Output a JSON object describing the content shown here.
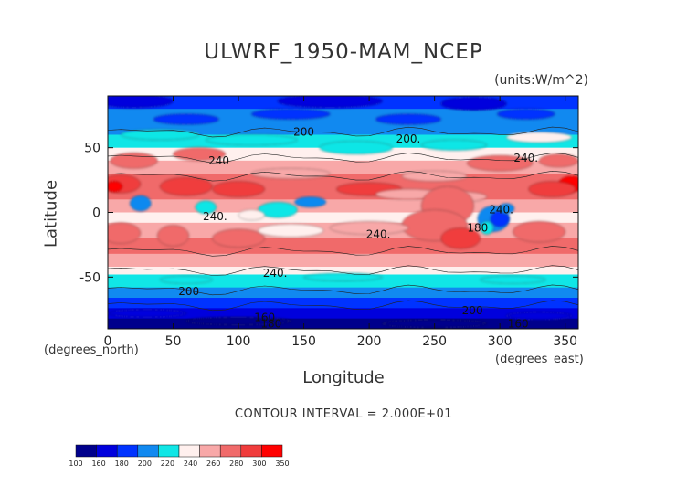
{
  "chart_data": {
    "type": "heatmap",
    "title": "ULWRF_1950-MAM_NCEP",
    "units": "(units:W/m^2)",
    "xlabel": "Longitude",
    "ylabel": "Latitude",
    "x_units": "(degrees_east)",
    "y_units": "(degrees_north)",
    "xlim": [
      0,
      360
    ],
    "ylim": [
      -90,
      90
    ],
    "x_ticks": [
      "0",
      "50",
      "100",
      "150",
      "200",
      "250",
      "300",
      "350"
    ],
    "x_tick_values": [
      0,
      50,
      100,
      150,
      200,
      250,
      300,
      350
    ],
    "y_ticks": [
      "50",
      "0",
      "-50"
    ],
    "y_tick_values": [
      50,
      0,
      -50
    ],
    "contour_interval": "CONTOUR INTERVAL = 2.000E+01",
    "contour_labels": [
      {
        "text": "200",
        "lon": 150,
        "lat": 62
      },
      {
        "text": "200.",
        "lon": 230,
        "lat": 57
      },
      {
        "text": "240",
        "lon": 85,
        "lat": 40
      },
      {
        "text": "240.",
        "lon": 320,
        "lat": 42
      },
      {
        "text": "240.",
        "lon": 82,
        "lat": -3
      },
      {
        "text": "240.",
        "lon": 207,
        "lat": -17
      },
      {
        "text": "240.",
        "lon": 128,
        "lat": -47
      },
      {
        "text": "240.",
        "lon": 301,
        "lat": 2
      },
      {
        "text": "180",
        "lon": 283,
        "lat": -12
      },
      {
        "text": "200",
        "lon": 62,
        "lat": -61
      },
      {
        "text": "200",
        "lon": 279,
        "lat": -76
      },
      {
        "text": "160",
        "lon": 120,
        "lat": -81
      },
      {
        "text": "180",
        "lon": 125,
        "lat": -86
      },
      {
        "text": "160",
        "lon": 314,
        "lat": -86
      }
    ],
    "colorbar": {
      "levels": [
        "100",
        "160",
        "180",
        "200",
        "220",
        "240",
        "260",
        "280",
        "300",
        "350"
      ],
      "colors": [
        "#00008c",
        "#0000dd",
        "#0033ff",
        "#1189f0",
        "#11e6e6",
        "#fff0ee",
        "#f8a8a8",
        "#f06a6a",
        "#f03c3c",
        "#ff0000"
      ]
    },
    "grid": false
  }
}
